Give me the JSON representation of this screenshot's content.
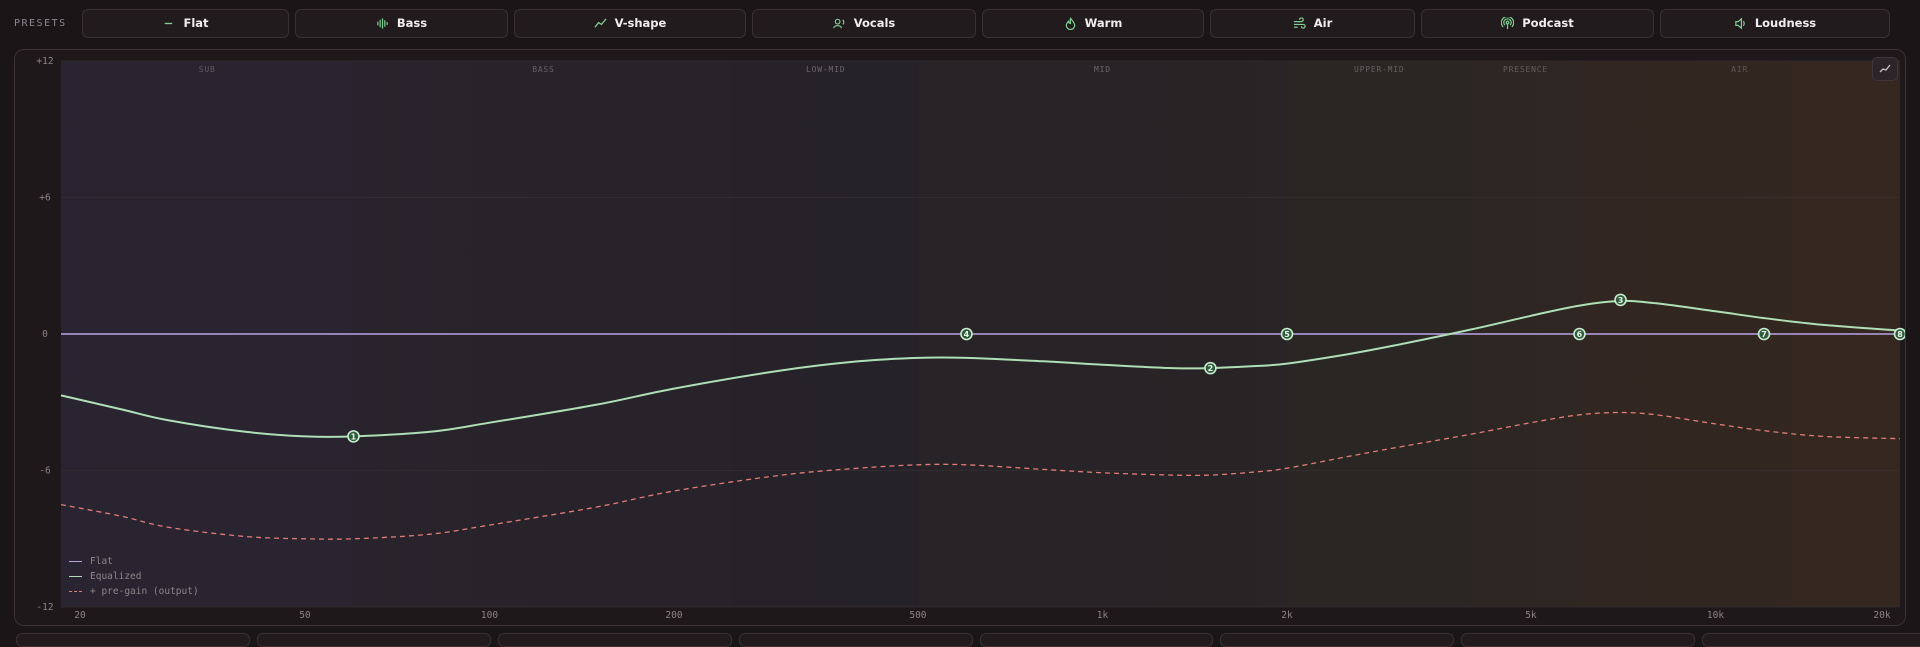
{
  "presets_label": "PRESETS",
  "presets": [
    {
      "label": "Flat",
      "icon": "dash-icon"
    },
    {
      "label": "Bass",
      "icon": "waveform-icon"
    },
    {
      "label": "V-shape",
      "icon": "trend-icon"
    },
    {
      "label": "Vocals",
      "icon": "voice-icon"
    },
    {
      "label": "Warm",
      "icon": "flame-icon"
    },
    {
      "label": "Air",
      "icon": "wind-icon"
    },
    {
      "label": "Podcast",
      "icon": "podcast-icon"
    },
    {
      "label": "Loudness",
      "icon": "speaker-icon"
    }
  ],
  "eq": {
    "bands": [
      {
        "label": "SUB",
        "from": 20,
        "to": 60
      },
      {
        "label": "BASS",
        "from": 60,
        "to": 250
      },
      {
        "label": "LOW-MID",
        "from": 250,
        "to": 500
      },
      {
        "label": "MID",
        "from": 500,
        "to": 2000
      },
      {
        "label": "UPPER-MID",
        "from": 2000,
        "to": 4000
      },
      {
        "label": "PRESENCE",
        "from": 4000,
        "to": 6000
      },
      {
        "label": "AIR",
        "from": 6000,
        "to": 20000
      }
    ],
    "y_ticks": [
      {
        "label": "+12",
        "db": 12
      },
      {
        "label": "+6",
        "db": 6
      },
      {
        "label": "0",
        "db": 0
      },
      {
        "label": "-6",
        "db": -6
      },
      {
        "label": "-12",
        "db": -12
      }
    ],
    "x_ticks": [
      {
        "label": "20",
        "hz": 20
      },
      {
        "label": "50",
        "hz": 50
      },
      {
        "label": "100",
        "hz": 100
      },
      {
        "label": "200",
        "hz": 200
      },
      {
        "label": "500",
        "hz": 500
      },
      {
        "label": "1k",
        "hz": 1000
      },
      {
        "label": "2k",
        "hz": 2000
      },
      {
        "label": "5k",
        "hz": 5000
      },
      {
        "label": "10k",
        "hz": 10000
      },
      {
        "label": "20k",
        "hz": 20000
      }
    ],
    "nodes": [
      {
        "id": "1",
        "hz": 60,
        "db": -4.5
      },
      {
        "id": "2",
        "hz": 1500,
        "db": -1.5
      },
      {
        "id": "3",
        "hz": 7000,
        "db": 1.5
      },
      {
        "id": "4",
        "hz": 600,
        "db": 0
      },
      {
        "id": "5",
        "hz": 2000,
        "db": 0
      },
      {
        "id": "6",
        "hz": 6000,
        "db": 0
      },
      {
        "id": "7",
        "hz": 12000,
        "db": 0
      },
      {
        "id": "8",
        "hz": 20000,
        "db": 0
      }
    ],
    "curve_equalized": [
      [
        20,
        -2.7
      ],
      [
        25,
        -3.3
      ],
      [
        30,
        -3.8
      ],
      [
        40,
        -4.3
      ],
      [
        50,
        -4.5
      ],
      [
        60,
        -4.5
      ],
      [
        80,
        -4.3
      ],
      [
        100,
        -3.9
      ],
      [
        150,
        -3.1
      ],
      [
        200,
        -2.4
      ],
      [
        300,
        -1.6
      ],
      [
        400,
        -1.2
      ],
      [
        500,
        -1.05
      ],
      [
        600,
        -1.05
      ],
      [
        800,
        -1.2
      ],
      [
        1000,
        -1.35
      ],
      [
        1300,
        -1.5
      ],
      [
        1500,
        -1.5
      ],
      [
        1800,
        -1.4
      ],
      [
        2000,
        -1.3
      ],
      [
        2500,
        -0.9
      ],
      [
        3000,
        -0.5
      ],
      [
        4000,
        0.2
      ],
      [
        5000,
        0.8
      ],
      [
        6000,
        1.25
      ],
      [
        7000,
        1.45
      ],
      [
        8000,
        1.35
      ],
      [
        10000,
        1.0
      ],
      [
        12000,
        0.7
      ],
      [
        15000,
        0.4
      ],
      [
        20000,
        0.15
      ]
    ],
    "curve_output": [
      [
        20,
        -7.5
      ],
      [
        25,
        -8.0
      ],
      [
        30,
        -8.5
      ],
      [
        40,
        -8.9
      ],
      [
        50,
        -9.0
      ],
      [
        60,
        -9.0
      ],
      [
        80,
        -8.8
      ],
      [
        100,
        -8.4
      ],
      [
        150,
        -7.6
      ],
      [
        200,
        -6.9
      ],
      [
        300,
        -6.2
      ],
      [
        400,
        -5.9
      ],
      [
        500,
        -5.75
      ],
      [
        600,
        -5.75
      ],
      [
        800,
        -5.95
      ],
      [
        1000,
        -6.1
      ],
      [
        1300,
        -6.2
      ],
      [
        1500,
        -6.2
      ],
      [
        1800,
        -6.05
      ],
      [
        2000,
        -5.9
      ],
      [
        2500,
        -5.4
      ],
      [
        3000,
        -5.0
      ],
      [
        4000,
        -4.4
      ],
      [
        5000,
        -3.9
      ],
      [
        6000,
        -3.55
      ],
      [
        7000,
        -3.45
      ],
      [
        8000,
        -3.55
      ],
      [
        10000,
        -3.95
      ],
      [
        12000,
        -4.25
      ],
      [
        15000,
        -4.5
      ],
      [
        20000,
        -4.6
      ]
    ],
    "legend": [
      {
        "label": "Flat",
        "color": "#b9a3e6",
        "style": "solid"
      },
      {
        "label": "Equalized",
        "color": "#aedfb6",
        "style": "solid"
      },
      {
        "label": "+ pre-gain (output)",
        "color": "#e17c78",
        "style": "dashed"
      }
    ],
    "colors": {
      "flat": "#b9a3e6",
      "equalized": "#aedfb6",
      "output": "#e17c78",
      "node_fill": "#2f5a3c",
      "node_stroke": "#c9ecd0"
    }
  }
}
